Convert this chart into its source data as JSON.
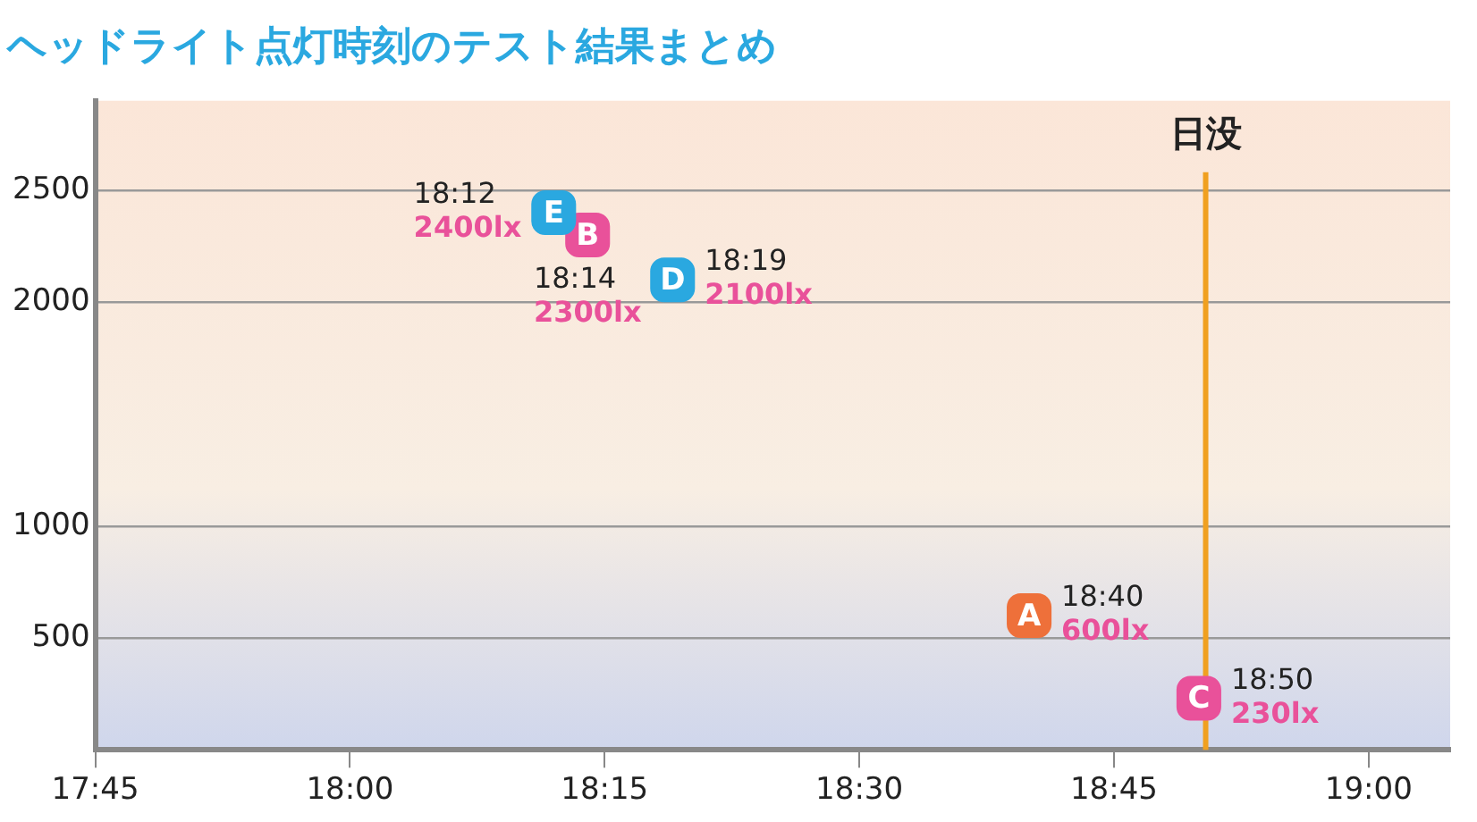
{
  "chart_data": {
    "type": "scatter",
    "title": "ヘッドライト点灯時刻のテスト結果まとめ",
    "xlim": [
      17.75,
      19.08
    ],
    "xticks": [
      {
        "value": 17.75,
        "label": "17:45"
      },
      {
        "value": 18,
        "label": "18:00"
      },
      {
        "value": 18.25,
        "label": "18:15"
      },
      {
        "value": 18.5,
        "label": "18:30"
      },
      {
        "value": 18.75,
        "label": "18:45"
      },
      {
        "value": 19,
        "label": "19:00"
      }
    ],
    "ylim": [
      0,
      2900
    ],
    "yticks": [
      500,
      1000,
      2000,
      2500
    ],
    "grid": "y",
    "marker": "square",
    "legend": false,
    "series": [
      {
        "name": "E",
        "color": "#2aa8e0",
        "x": [
          18.2
        ],
        "values": [
          2400
        ],
        "value_labels": [
          "2400lx"
        ]
      },
      {
        "name": "B",
        "color": "#e9519a",
        "x": [
          18.2333
        ],
        "values": [
          2300
        ],
        "value_labels": [
          "2300lx"
        ]
      },
      {
        "name": "D",
        "color": "#2aa8e0",
        "x": [
          18.3167
        ],
        "values": [
          2100
        ],
        "value_labels": [
          "2100lx"
        ]
      },
      {
        "name": "A",
        "color": "#ee703a",
        "x": [
          18.6667
        ],
        "values": [
          600
        ],
        "value_labels": [
          "600lx"
        ]
      },
      {
        "name": "C",
        "color": "#e9519a",
        "x": [
          18.8333
        ],
        "values": [
          230
        ],
        "value_labels": [
          "230lx"
        ]
      }
    ],
    "annotations": [
      {
        "text": "18:12",
        "x": 18.2,
        "y": 2400
      },
      {
        "text": "18:14",
        "x": 18.2333,
        "y": 2300
      },
      {
        "text": "18:19",
        "x": 18.3167,
        "y": 2100
      },
      {
        "text": "18:40",
        "x": 18.6667,
        "y": 600
      },
      {
        "text": "18:50",
        "x": 18.8333,
        "y": 230
      }
    ],
    "ref_lines": [
      {
        "axis": "x",
        "value": 18.84,
        "label": "日没",
        "color": "#f0a020"
      }
    ]
  }
}
